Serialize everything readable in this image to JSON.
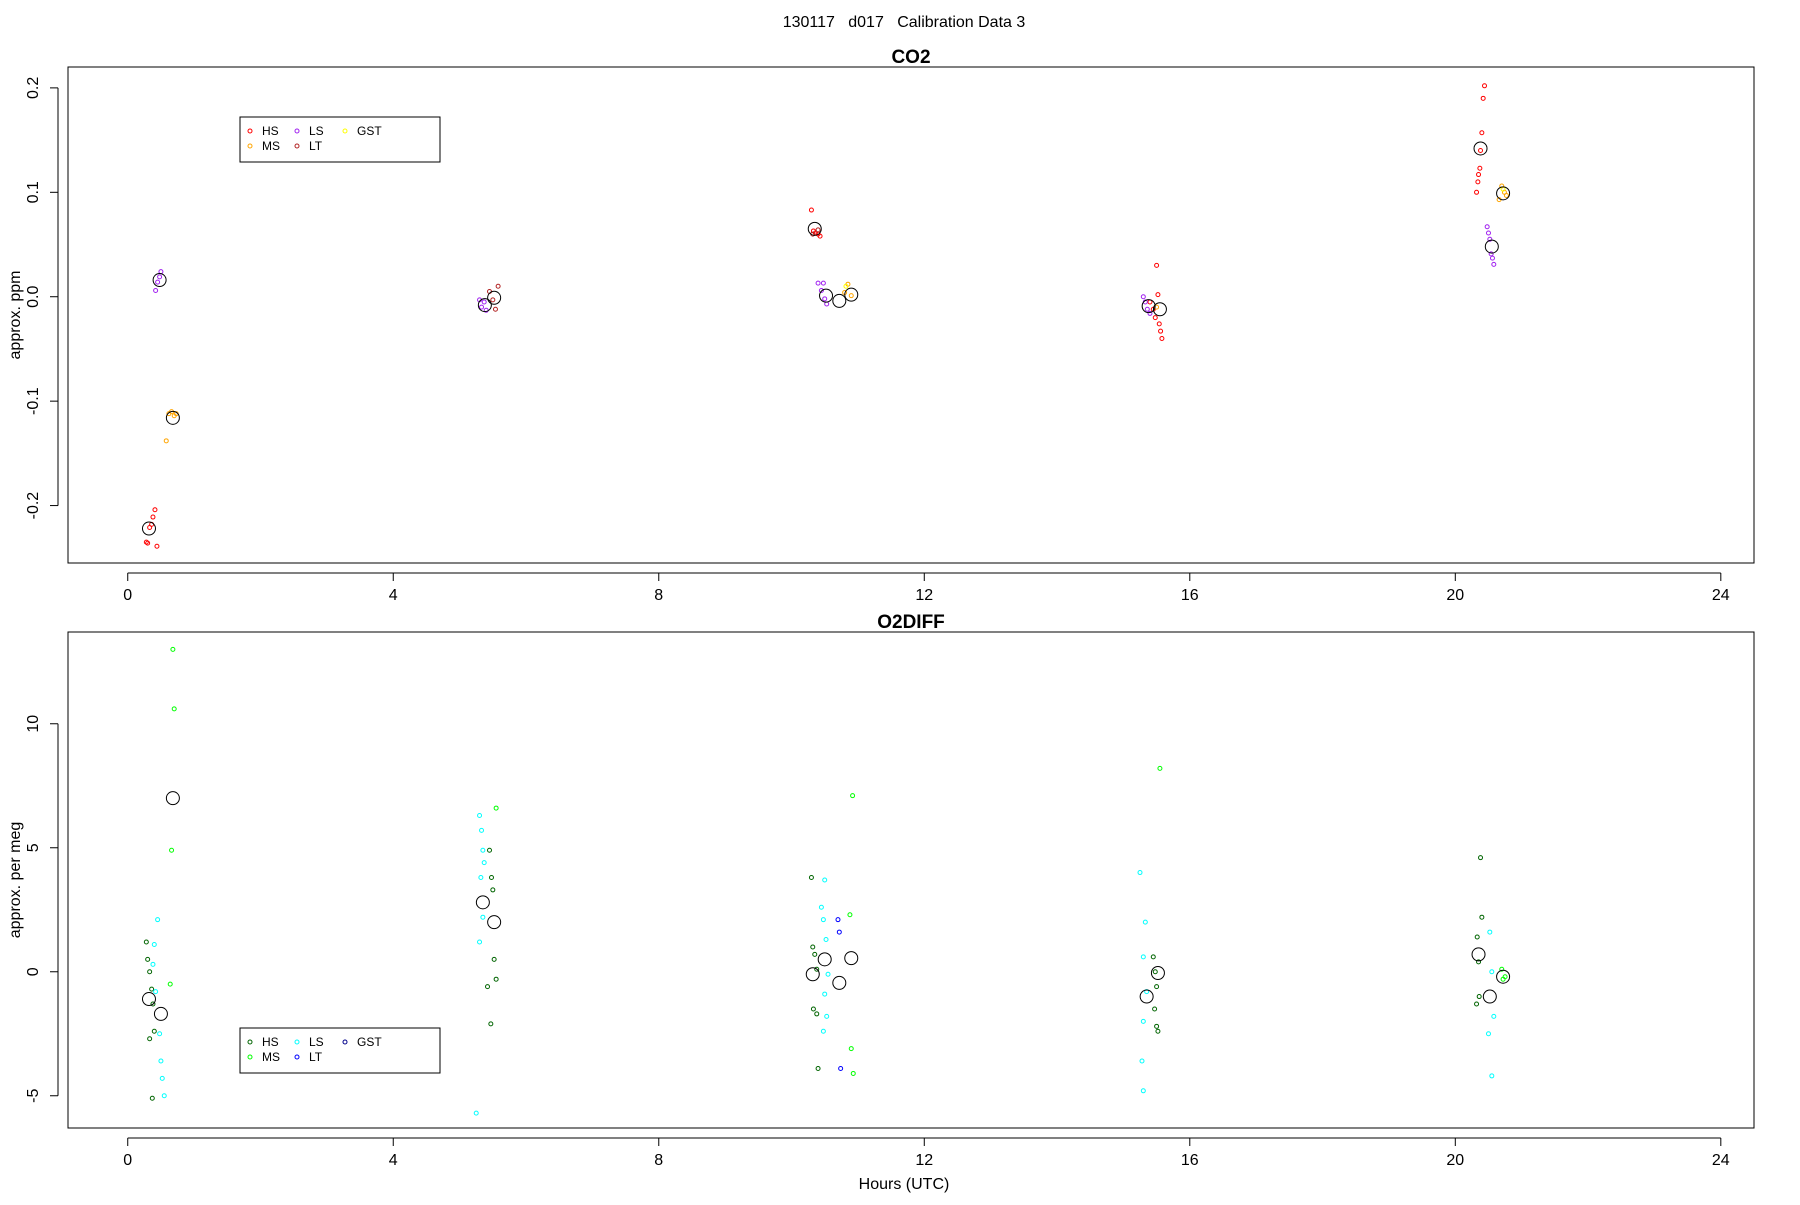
{
  "page_title": "130117   d017   Calibration Data 3",
  "x_axis_label": "Hours (UTC)",
  "chart_data": [
    {
      "type": "scatter",
      "title": "CO2",
      "xlabel": "",
      "ylabel": "approx. ppm",
      "xlim": [
        -0.9,
        24.5
      ],
      "ylim": [
        -0.255,
        0.22
      ],
      "x_ticks": [
        0,
        4,
        8,
        12,
        16,
        20,
        24
      ],
      "y_ticks": [
        -0.2,
        -0.1,
        0.0,
        0.1,
        0.2
      ],
      "y_tick_labels": [
        "-0.2",
        "-0.1",
        "0.0",
        "0.1",
        "0.2"
      ],
      "grid": false,
      "legend_position": "top-left",
      "legend": [
        {
          "label": "HS",
          "color": "#ff0000"
        },
        {
          "label": "MS",
          "color": "#ffa500"
        },
        {
          "label": "LS",
          "color": "#a020f0"
        },
        {
          "label": "LT",
          "color": "#b22222"
        },
        {
          "label": "GST",
          "color": "#ffff00"
        }
      ],
      "series": [
        {
          "name": "HS",
          "color": "#ff0000",
          "points": [
            [
              0.3,
              -0.236
            ],
            [
              0.33,
              -0.221
            ],
            [
              0.36,
              -0.218
            ],
            [
              0.38,
              -0.211
            ],
            [
              0.41,
              -0.204
            ],
            [
              0.44,
              -0.239
            ],
            [
              0.28,
              -0.235
            ],
            [
              10.3,
              0.083
            ],
            [
              10.33,
              0.063
            ],
            [
              10.36,
              0.061
            ],
            [
              10.4,
              0.06
            ],
            [
              10.43,
              0.058
            ],
            [
              15.4,
              -0.005
            ],
            [
              15.45,
              -0.012
            ],
            [
              15.48,
              -0.02
            ],
            [
              15.5,
              0.03
            ],
            [
              15.52,
              0.002
            ],
            [
              15.54,
              -0.026
            ],
            [
              15.56,
              -0.033
            ],
            [
              15.58,
              -0.04
            ],
            [
              20.32,
              0.1
            ],
            [
              20.34,
              0.11
            ],
            [
              20.35,
              0.117
            ],
            [
              20.37,
              0.123
            ],
            [
              20.38,
              0.14
            ],
            [
              20.4,
              0.157
            ],
            [
              20.42,
              0.19
            ],
            [
              20.44,
              0.202
            ]
          ]
        },
        {
          "name": "MS",
          "color": "#ffa500",
          "points": [
            [
              0.58,
              -0.138
            ],
            [
              0.62,
              -0.112
            ],
            [
              0.66,
              -0.11
            ],
            [
              0.7,
              -0.114
            ],
            [
              0.73,
              -0.112
            ],
            [
              10.8,
              0.004
            ],
            [
              10.85,
              0.012
            ],
            [
              10.9,
              0.001
            ],
            [
              15.5,
              -0.01
            ],
            [
              20.66,
              0.093
            ],
            [
              20.7,
              0.106
            ],
            [
              20.74,
              0.1
            ],
            [
              20.77,
              0.097
            ]
          ]
        },
        {
          "name": "LS",
          "color": "#a020f0",
          "points": [
            [
              0.42,
              0.006
            ],
            [
              0.45,
              0.014
            ],
            [
              0.48,
              0.019
            ],
            [
              0.5,
              0.024
            ],
            [
              5.3,
              -0.003
            ],
            [
              5.33,
              -0.01
            ],
            [
              5.37,
              -0.005
            ],
            [
              5.4,
              -0.013
            ],
            [
              10.4,
              0.013
            ],
            [
              10.45,
              0.006
            ],
            [
              10.5,
              -0.002
            ],
            [
              10.53,
              -0.007
            ],
            [
              10.48,
              0.013
            ],
            [
              15.3,
              0.0
            ],
            [
              15.33,
              -0.005
            ],
            [
              15.36,
              -0.012
            ],
            [
              15.4,
              -0.016
            ],
            [
              20.48,
              0.067
            ],
            [
              20.5,
              0.061
            ],
            [
              20.52,
              0.055
            ],
            [
              20.54,
              0.041
            ],
            [
              20.56,
              0.037
            ],
            [
              20.58,
              0.031
            ]
          ]
        },
        {
          "name": "LT",
          "color": "#b22222",
          "points": [
            [
              5.45,
              0.005
            ],
            [
              5.5,
              -0.003
            ],
            [
              5.54,
              -0.012
            ],
            [
              5.58,
              0.01
            ],
            [
              10.32,
              0.06
            ],
            [
              10.4,
              0.064
            ]
          ]
        },
        {
          "name": "GST",
          "color": "#ffff00",
          "points": [
            [
              10.82,
              0.01
            ],
            [
              20.72,
              0.103
            ]
          ]
        },
        {
          "name": "",
          "color": "#000000",
          "mean": true,
          "points": [
            [
              0.32,
              -0.222
            ],
            [
              0.48,
              0.016
            ],
            [
              0.68,
              -0.116
            ],
            [
              5.38,
              -0.008
            ],
            [
              5.52,
              -0.001
            ],
            [
              10.35,
              0.065
            ],
            [
              10.52,
              0.001
            ],
            [
              10.72,
              -0.004
            ],
            [
              10.9,
              0.002
            ],
            [
              15.38,
              -0.009
            ],
            [
              15.55,
              -0.012
            ],
            [
              20.38,
              0.142
            ],
            [
              20.55,
              0.048
            ],
            [
              20.72,
              0.099
            ]
          ]
        }
      ]
    },
    {
      "type": "scatter",
      "title": "O2DIFF",
      "xlabel": "Hours (UTC)",
      "ylabel": "approx. per meg",
      "xlim": [
        -0.9,
        24.5
      ],
      "ylim": [
        -6.3,
        13.7
      ],
      "x_ticks": [
        0,
        4,
        8,
        12,
        16,
        20,
        24
      ],
      "y_ticks": [
        -5,
        0,
        5,
        10
      ],
      "y_tick_labels": [
        "-5",
        "0",
        "5",
        "10"
      ],
      "grid": false,
      "legend_position": "bottom-left",
      "legend": [
        {
          "label": "HS",
          "color": "#006400"
        },
        {
          "label": "MS",
          "color": "#00ff00"
        },
        {
          "label": "LS",
          "color": "#00ffff"
        },
        {
          "label": "LT",
          "color": "#0000ff"
        },
        {
          "label": "GST",
          "color": "#00008b"
        }
      ],
      "series": [
        {
          "name": "HS",
          "color": "#006400",
          "points": [
            [
              0.28,
              1.2
            ],
            [
              0.3,
              0.5
            ],
            [
              0.33,
              0.0
            ],
            [
              0.36,
              -0.7
            ],
            [
              0.38,
              -1.3
            ],
            [
              0.4,
              -2.4
            ],
            [
              0.33,
              -2.7
            ],
            [
              0.37,
              -5.1
            ],
            [
              5.45,
              4.9
            ],
            [
              5.48,
              3.8
            ],
            [
              5.5,
              3.3
            ],
            [
              5.52,
              0.5
            ],
            [
              5.55,
              -0.3
            ],
            [
              5.42,
              -0.6
            ],
            [
              5.47,
              -2.1
            ],
            [
              10.3,
              3.8
            ],
            [
              10.32,
              1.0
            ],
            [
              10.35,
              0.7
            ],
            [
              10.38,
              0.1
            ],
            [
              10.33,
              -1.5
            ],
            [
              10.38,
              -1.7
            ],
            [
              10.4,
              -3.9
            ],
            [
              15.45,
              0.6
            ],
            [
              15.48,
              0.0
            ],
            [
              15.5,
              -0.6
            ],
            [
              15.47,
              -1.5
            ],
            [
              15.5,
              -2.2
            ],
            [
              15.52,
              -2.4
            ],
            [
              20.38,
              4.6
            ],
            [
              20.4,
              2.2
            ],
            [
              20.33,
              1.4
            ],
            [
              20.35,
              0.4
            ],
            [
              20.36,
              -1.0
            ],
            [
              20.32,
              -1.3
            ]
          ]
        },
        {
          "name": "MS",
          "color": "#00ff00",
          "points": [
            [
              0.68,
              13.0
            ],
            [
              0.7,
              10.6
            ],
            [
              0.66,
              4.9
            ],
            [
              0.64,
              -0.5
            ],
            [
              5.55,
              6.6
            ],
            [
              10.92,
              7.1
            ],
            [
              10.88,
              2.3
            ],
            [
              10.9,
              -3.1
            ],
            [
              10.93,
              -4.1
            ],
            [
              15.55,
              8.2
            ],
            [
              20.7,
              0.1
            ],
            [
              20.72,
              -0.3
            ],
            [
              20.75,
              -0.2
            ]
          ]
        },
        {
          "name": "LS",
          "color": "#00ffff",
          "points": [
            [
              0.45,
              2.1
            ],
            [
              0.4,
              1.1
            ],
            [
              0.38,
              0.3
            ],
            [
              0.42,
              -0.8
            ],
            [
              0.48,
              -2.5
            ],
            [
              0.5,
              -3.6
            ],
            [
              0.52,
              -4.3
            ],
            [
              0.55,
              -5.0
            ],
            [
              5.3,
              6.3
            ],
            [
              5.33,
              5.7
            ],
            [
              5.35,
              4.9
            ],
            [
              5.37,
              4.4
            ],
            [
              5.32,
              3.8
            ],
            [
              5.35,
              2.2
            ],
            [
              5.3,
              1.2
            ],
            [
              5.25,
              -5.7
            ],
            [
              10.45,
              2.6
            ],
            [
              10.5,
              3.7
            ],
            [
              10.48,
              2.1
            ],
            [
              10.52,
              1.3
            ],
            [
              10.55,
              -0.1
            ],
            [
              10.5,
              -0.9
            ],
            [
              10.53,
              -1.8
            ],
            [
              10.48,
              -2.4
            ],
            [
              15.25,
              4.0
            ],
            [
              15.33,
              2.0
            ],
            [
              15.3,
              0.6
            ],
            [
              15.35,
              -0.8
            ],
            [
              15.3,
              -2.0
            ],
            [
              15.28,
              -3.6
            ],
            [
              15.3,
              -4.8
            ],
            [
              20.52,
              1.6
            ],
            [
              20.55,
              0.0
            ],
            [
              20.58,
              -1.8
            ],
            [
              20.5,
              -2.5
            ],
            [
              20.55,
              -4.2
            ]
          ]
        },
        {
          "name": "LT",
          "color": "#0000ff",
          "points": [
            [
              10.7,
              2.1
            ],
            [
              10.72,
              1.6
            ],
            [
              10.74,
              -3.9
            ]
          ]
        },
        {
          "name": "GST",
          "color": "#00008b",
          "points": []
        },
        {
          "name": "",
          "color": "#000000",
          "mean": true,
          "points": [
            [
              0.32,
              -1.1
            ],
            [
              0.5,
              -1.7
            ],
            [
              0.68,
              7.0
            ],
            [
              5.35,
              2.8
            ],
            [
              5.52,
              2.0
            ],
            [
              10.32,
              -0.1
            ],
            [
              10.5,
              0.5
            ],
            [
              10.72,
              -0.45
            ],
            [
              10.9,
              0.55
            ],
            [
              15.35,
              -1.0
            ],
            [
              15.52,
              -0.05
            ],
            [
              20.35,
              0.7
            ],
            [
              20.52,
              -1.0
            ],
            [
              20.72,
              -0.2
            ]
          ]
        }
      ]
    }
  ]
}
